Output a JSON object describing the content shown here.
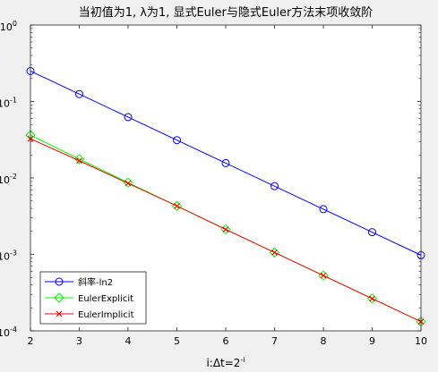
{
  "chart_data": {
    "type": "line",
    "title": "当初值为1, λ为1, 显式Euler与隐式Euler方法末项收敛阶",
    "xlabel_main": "i:Δt=2",
    "xlabel_sup": "-i",
    "ylabel": "",
    "xscale": "linear",
    "yscale": "log",
    "xlim": [
      2,
      10
    ],
    "ylim": [
      0.0001,
      1
    ],
    "x": [
      2,
      3,
      4,
      5,
      6,
      7,
      8,
      9,
      10
    ],
    "xticks": [
      "2",
      "3",
      "4",
      "5",
      "6",
      "7",
      "8",
      "9",
      "10"
    ],
    "yticks": [
      {
        "base": "10",
        "exp": "0"
      },
      {
        "base": "10",
        "exp": "-1"
      },
      {
        "base": "10",
        "exp": "-2"
      },
      {
        "base": "10",
        "exp": "-3"
      },
      {
        "base": "10",
        "exp": "-4"
      }
    ],
    "grid": false,
    "legend_position": "bottom-left",
    "series": [
      {
        "name": "斜率-ln2",
        "color": "#0000ff",
        "marker": "circle",
        "values": [
          0.25,
          0.125,
          0.0625,
          0.03125,
          0.015625,
          0.0078125,
          0.00390625,
          0.001953125,
          0.0009765625
        ]
      },
      {
        "name": "EulerExplicit",
        "color": "#00ff00",
        "marker": "diamond",
        "values": [
          0.0363,
          0.0177,
          0.0087,
          0.0043,
          0.00213,
          0.00106,
          0.00053,
          0.000265,
          0.000132
        ]
      },
      {
        "name": "EulerImplicit",
        "color": "#ff0000",
        "marker": "x",
        "values": [
          0.0325,
          0.0168,
          0.0085,
          0.0043,
          0.00212,
          0.00106,
          0.000529,
          0.000264,
          0.000132
        ]
      }
    ]
  }
}
